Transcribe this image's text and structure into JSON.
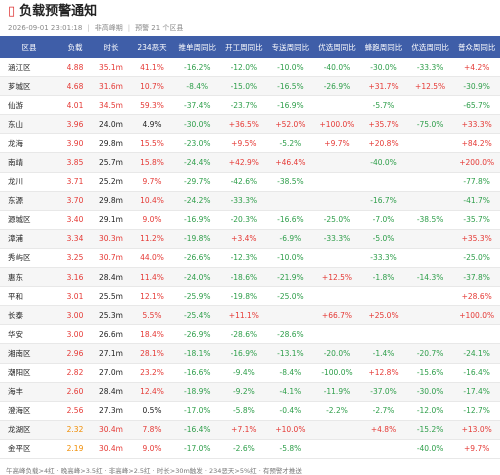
{
  "header": {
    "icon": "▯",
    "title": "负载预警通知",
    "subtitle": [
      "2026-09-01 23:01:18",
      "非高峰期",
      "预警 21 个区县"
    ]
  },
  "table": {
    "header_color": "#3f5ea8",
    "alert_color": "#e53935",
    "warn_color": "#f08c00",
    "up_color": "#e53935",
    "down_color": "#2e9e4a",
    "columns": [
      "区县",
      "负载",
      "时长",
      "234恶天",
      "推单周同比",
      "开工周同比",
      "专送周同比",
      "优选周同比",
      "蜂跑周同比",
      "优选周同比",
      "普众周同比"
    ],
    "rows": [
      [
        "涵江区",
        "4.88",
        "35.1m",
        "41.1%",
        "-16.2%",
        "-12.0%",
        "-10.0%",
        "-40.0%",
        "-30.0%",
        "-33.3%",
        "+4.2%"
      ],
      [
        "芗城区",
        "4.68",
        "31.6m",
        "10.7%",
        "-8.4%",
        "-15.0%",
        "-16.5%",
        "-26.9%",
        "+31.7%",
        "+12.5%",
        "-30.9%"
      ],
      [
        "仙游",
        "4.01",
        "34.5m",
        "59.3%",
        "-37.4%",
        "-23.7%",
        "-16.9%",
        null,
        "-5.7%",
        null,
        "-65.7%"
      ],
      [
        "东山",
        "3.96",
        "24.0m",
        "4.9%",
        "-30.0%",
        "+36.5%",
        "+52.0%",
        "+100.0%",
        "+35.7%",
        "-75.0%",
        "+33.3%"
      ],
      [
        "龙海",
        "3.90",
        "29.8m",
        "15.5%",
        "-23.0%",
        "+9.5%",
        "-5.2%",
        "+9.7%",
        "+20.8%",
        null,
        "+84.2%"
      ],
      [
        "南靖",
        "3.85",
        "25.7m",
        "15.8%",
        "-24.4%",
        "+42.9%",
        "+46.4%",
        null,
        "-40.0%",
        null,
        "+200.0%"
      ],
      [
        "龙川",
        "3.71",
        "25.2m",
        "9.7%",
        "-29.7%",
        "-42.6%",
        "-38.5%",
        null,
        null,
        null,
        "-77.8%"
      ],
      [
        "东源",
        "3.70",
        "29.8m",
        "10.4%",
        "-24.2%",
        "-33.3%",
        null,
        null,
        "-16.7%",
        null,
        "-41.7%"
      ],
      [
        "源城区",
        "3.40",
        "29.1m",
        "9.0%",
        "-16.9%",
        "-20.3%",
        "-16.6%",
        "-25.0%",
        "-7.0%",
        "-38.5%",
        "-35.7%"
      ],
      [
        "漳浦",
        "3.34",
        "30.3m",
        "11.2%",
        "-19.8%",
        "+3.4%",
        "-6.9%",
        "-33.3%",
        "-5.0%",
        null,
        "+35.3%"
      ],
      [
        "秀屿区",
        "3.25",
        "30.7m",
        "44.0%",
        "-26.6%",
        "-12.3%",
        "-10.0%",
        null,
        "-33.3%",
        null,
        "-25.0%"
      ],
      [
        "惠东",
        "3.16",
        "28.4m",
        "11.4%",
        "-24.0%",
        "-18.6%",
        "-21.9%",
        "+12.5%",
        "-1.8%",
        "-14.3%",
        "-37.8%"
      ],
      [
        "平和",
        "3.01",
        "25.5m",
        "12.1%",
        "-25.9%",
        "-19.8%",
        "-25.0%",
        null,
        null,
        null,
        "+28.6%"
      ],
      [
        "长泰",
        "3.00",
        "25.3m",
        "5.5%",
        "-25.4%",
        "+11.1%",
        null,
        "+66.7%",
        "+25.0%",
        null,
        "+100.0%"
      ],
      [
        "华安",
        "3.00",
        "26.6m",
        "18.4%",
        "-26.9%",
        "-28.6%",
        "-28.6%",
        null,
        null,
        null,
        null
      ],
      [
        "湘南区",
        "2.96",
        "27.1m",
        "28.1%",
        "-18.1%",
        "-16.9%",
        "-13.1%",
        "-20.0%",
        "-1.4%",
        "-20.7%",
        "-24.1%"
      ],
      [
        "潮阳区",
        "2.82",
        "27.0m",
        "23.2%",
        "-16.6%",
        "-9.4%",
        "-8.4%",
        "-100.0%",
        "+12.8%",
        "-15.6%",
        "-16.4%"
      ],
      [
        "海丰",
        "2.60",
        "28.4m",
        "12.4%",
        "-18.9%",
        "-9.2%",
        "-4.1%",
        "-11.9%",
        "-37.0%",
        "-30.0%",
        "-17.4%"
      ],
      [
        "澄海区",
        "2.56",
        "27.3m",
        "0.5%",
        "-17.0%",
        "-5.8%",
        "-0.4%",
        "-2.2%",
        "-2.7%",
        "-12.0%",
        "-12.7%"
      ],
      [
        "龙湖区",
        "2.32",
        "30.4m",
        "7.8%",
        "-16.4%",
        "+7.1%",
        "+10.0%",
        null,
        "+4.8%",
        "-15.2%",
        "+13.0%"
      ],
      [
        "金平区",
        "2.19",
        "30.4m",
        "9.0%",
        "-17.0%",
        "-2.6%",
        "-5.8%",
        null,
        null,
        "-40.0%",
        "+9.7%"
      ]
    ],
    "metric_levels": [
      [
        "alert",
        "alert",
        "alert"
      ],
      [
        "alert",
        "alert",
        "alert"
      ],
      [
        "alert",
        "alert",
        "alert"
      ],
      [
        "alert",
        "plain",
        "plain"
      ],
      [
        "alert",
        "plain",
        "alert"
      ],
      [
        "alert",
        "plain",
        "alert"
      ],
      [
        "alert",
        "plain",
        "alert"
      ],
      [
        "alert",
        "plain",
        "alert"
      ],
      [
        "alert",
        "plain",
        "alert"
      ],
      [
        "alert",
        "alert",
        "alert"
      ],
      [
        "alert",
        "alert",
        "alert"
      ],
      [
        "alert",
        "plain",
        "alert"
      ],
      [
        "alert",
        "plain",
        "alert"
      ],
      [
        "alert",
        "plain",
        "alert"
      ],
      [
        "alert",
        "plain",
        "alert"
      ],
      [
        "alert",
        "plain",
        "alert"
      ],
      [
        "alert",
        "plain",
        "alert"
      ],
      [
        "alert",
        "plain",
        "alert"
      ],
      [
        "alert",
        "plain",
        "plain"
      ],
      [
        "warn",
        "alert",
        "alert"
      ],
      [
        "warn",
        "alert",
        "alert"
      ]
    ]
  },
  "footer": "午高峰负载>4红 · 晚高峰>3.5红 · 非高峰>2.5红 · 时长>30m触发 · 234恶天>5%红 · 有预警才推送"
}
